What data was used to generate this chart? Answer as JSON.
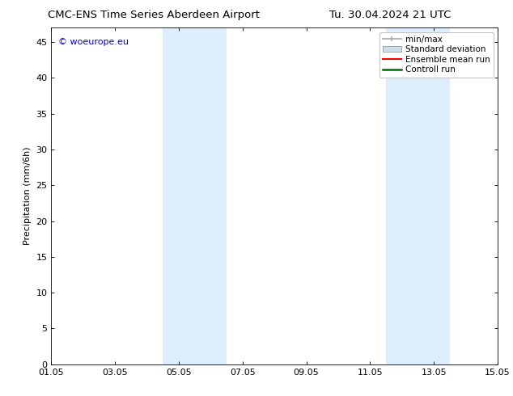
{
  "title_left": "CMC-ENS Time Series Aberdeen Airport",
  "title_right": "Tu. 30.04.2024 21 UTC",
  "ylabel": "Precipitation (mm/6h)",
  "ylim": [
    0,
    47
  ],
  "yticks": [
    0,
    5,
    10,
    15,
    20,
    25,
    30,
    35,
    40,
    45
  ],
  "xtick_labels": [
    "01.05",
    "03.05",
    "05.05",
    "07.05",
    "09.05",
    "11.05",
    "13.05",
    "15.05"
  ],
  "xtick_positions": [
    0,
    2,
    4,
    6,
    8,
    10,
    12,
    14
  ],
  "xlim": [
    0,
    14
  ],
  "shaded_bands": [
    {
      "x_start": 3.5,
      "x_end": 5.5,
      "color": "#dceeff"
    },
    {
      "x_start": 10.5,
      "x_end": 12.5,
      "color": "#dceeff"
    }
  ],
  "watermark_text": "© woeurope.eu",
  "watermark_color": "#0000cc",
  "legend_entries": [
    {
      "label": "min/max",
      "color": "#aaaaaa",
      "style": "errorbar"
    },
    {
      "label": "Standard deviation",
      "color": "#ccddee",
      "style": "box"
    },
    {
      "label": "Ensemble mean run",
      "color": "#ff0000",
      "style": "line",
      "lw": 1.5
    },
    {
      "label": "Controll run",
      "color": "#006600",
      "style": "line",
      "lw": 1.8
    }
  ],
  "bg_color": "#ffffff",
  "plot_bg_color": "#ffffff",
  "title_fontsize": 9.5,
  "axis_label_fontsize": 8,
  "tick_fontsize": 8,
  "legend_fontsize": 7.5
}
